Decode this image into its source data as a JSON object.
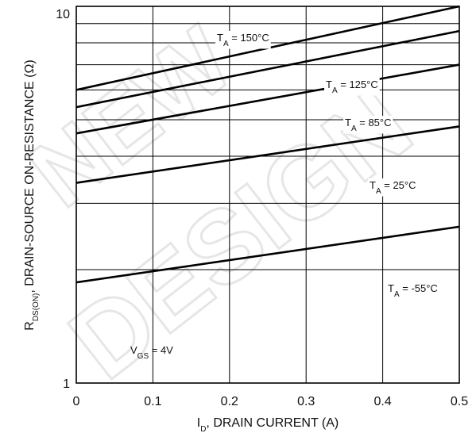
{
  "chart_data": {
    "type": "line",
    "xlabel": "I_D, DRAIN CURRENT (A)",
    "ylabel": "R_DS(ON), DRAIN-SOURCE ON-RESISTANCE (Ω)",
    "x_ticks": [
      "0",
      "0.1",
      "0.2",
      "0.3",
      "0.4",
      "0.5"
    ],
    "y_ticks": [
      "1",
      "10"
    ],
    "xlim": [
      0,
      0.5
    ],
    "ylim": [
      1,
      10
    ],
    "y_scale": "log",
    "grid": true,
    "annotation": "V_GS = 4V",
    "watermark": "NEW DESIGN",
    "series": [
      {
        "name": "T_A = 150°C",
        "x": [
          0,
          0.5
        ],
        "y": [
          6.0,
          10.0
        ]
      },
      {
        "name": "T_A = 125°C",
        "x": [
          0,
          0.5
        ],
        "y": [
          5.4,
          8.6
        ]
      },
      {
        "name": "T_A = 85°C",
        "x": [
          0,
          0.5
        ],
        "y": [
          4.6,
          7.0
        ]
      },
      {
        "name": "T_A = 25°C",
        "x": [
          0,
          0.5
        ],
        "y": [
          3.4,
          4.8
        ]
      },
      {
        "name": "T_A = -55°C",
        "x": [
          0,
          0.5
        ],
        "y": [
          1.85,
          2.6
        ]
      }
    ]
  }
}
